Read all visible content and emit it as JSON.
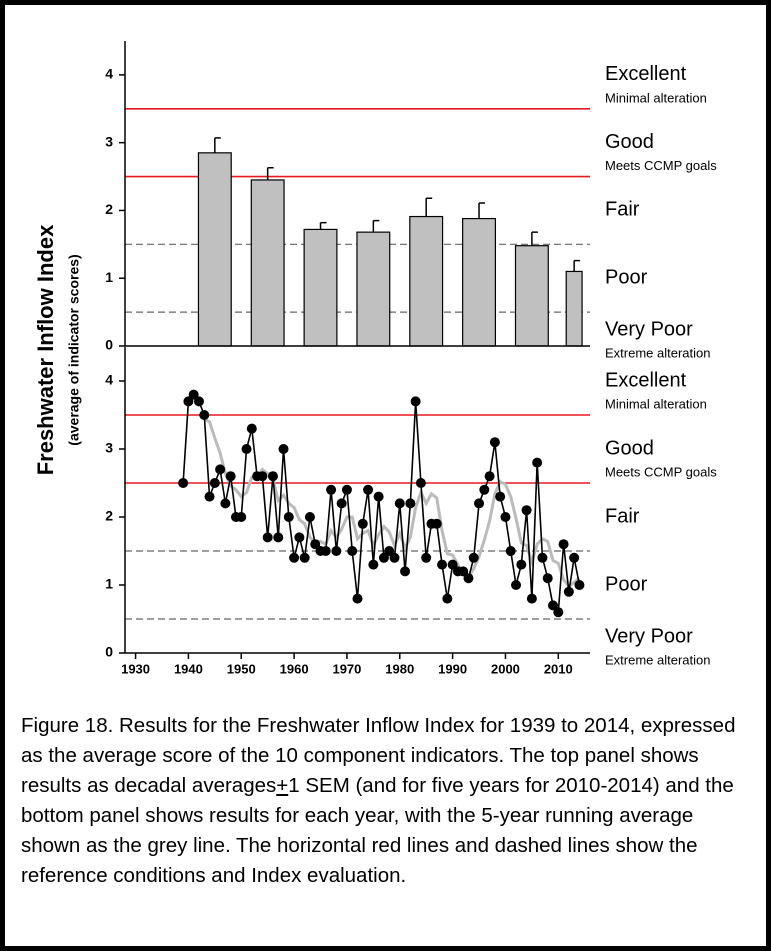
{
  "figure": {
    "ylabel": "Freshwater Inflow Index",
    "ylabel_note": "(average of indicator scores)",
    "caption": [
      "Figure 18. Results for the Freshwater Inflow Index for 1939 to 2014, expressed as the average score of the 10 component indicators. The top panel shows results as decadal averages",
      "+",
      "1 SEM (and for five years for 2010-2014) and the bottom panel shows results for each year, with the 5-year running average shown as the grey line. The horizontal red lines and dashed lines show the reference conditions and Index evaluation."
    ]
  },
  "chart_data": [
    {
      "type": "bar",
      "x": [
        1945,
        1955,
        1965,
        1975,
        1985,
        1995,
        2005,
        2013
      ],
      "values": [
        2.85,
        2.45,
        1.72,
        1.68,
        1.91,
        1.88,
        1.48,
        1.1
      ],
      "errors": [
        0.22,
        0.18,
        0.1,
        0.17,
        0.27,
        0.23,
        0.2,
        0.16
      ],
      "color": "#c0c0c0",
      "xlim": [
        1928,
        2016
      ],
      "ylim": [
        0,
        4.5
      ],
      "yticks": [
        0,
        1,
        2,
        3,
        4
      ],
      "reference_lines": [
        {
          "value": 3.5,
          "color": "#e8191f",
          "style": "solid"
        },
        {
          "value": 2.5,
          "color": "#e8191f",
          "style": "solid"
        },
        {
          "value": 1.5,
          "color": "#666666",
          "style": "dashed"
        },
        {
          "value": 0.5,
          "color": "#666666",
          "style": "dashed"
        }
      ],
      "ratings": [
        {
          "label": "Excellent",
          "note": "Minimal alteration"
        },
        {
          "label": "Good",
          "note": "Meets CCMP goals"
        },
        {
          "label": "Fair"
        },
        {
          "label": "Poor"
        },
        {
          "label": "Very Poor",
          "note": "Extreme alteration"
        }
      ]
    },
    {
      "type": "line",
      "x": [
        1939,
        1940,
        1941,
        1942,
        1943,
        1944,
        1945,
        1946,
        1947,
        1948,
        1949,
        1950,
        1951,
        1952,
        1953,
        1954,
        1955,
        1956,
        1957,
        1958,
        1959,
        1960,
        1961,
        1962,
        1963,
        1964,
        1965,
        1966,
        1967,
        1968,
        1969,
        1970,
        1971,
        1972,
        1973,
        1974,
        1975,
        1976,
        1977,
        1978,
        1979,
        1980,
        1981,
        1982,
        1983,
        1984,
        1985,
        1986,
        1987,
        1988,
        1989,
        1990,
        1991,
        1992,
        1993,
        1994,
        1995,
        1996,
        1997,
        1998,
        1999,
        2000,
        2001,
        2002,
        2003,
        2004,
        2005,
        2006,
        2007,
        2008,
        2009,
        2010,
        2011,
        2012,
        2013,
        2014
      ],
      "series": [
        {
          "color": "#bbbbbb",
          "markers": false,
          "values": [
            null,
            null,
            null,
            null,
            3.44,
            3.4,
            3.16,
            2.94,
            2.64,
            2.46,
            2.4,
            2.3,
            2.36,
            2.58,
            2.58,
            2.7,
            2.64,
            2.56,
            2.24,
            2.32,
            2.2,
            2.14,
            1.96,
            1.9,
            1.7,
            1.62,
            1.64,
            1.6,
            1.8,
            1.7,
            1.82,
            2.0,
            2.0,
            1.68,
            1.76,
            1.8,
            1.58,
            1.74,
            1.86,
            1.78,
            1.58,
            1.76,
            1.54,
            1.7,
            2.14,
            2.36,
            2.2,
            2.34,
            2.28,
            1.8,
            1.46,
            1.44,
            1.3,
            1.16,
            1.12,
            1.24,
            1.42,
            1.66,
            1.94,
            2.34,
            2.52,
            2.48,
            2.3,
            1.98,
            1.62,
            1.58,
            1.34,
            1.6,
            1.68,
            1.64,
            1.36,
            1.32,
            1.08,
            0.98,
            1.04,
            1.1
          ]
        },
        {
          "color": "#000000",
          "markers": true,
          "values": [
            2.5,
            3.7,
            3.8,
            3.7,
            3.5,
            2.3,
            2.5,
            2.7,
            2.2,
            2.6,
            2.0,
            2.0,
            3.0,
            3.3,
            2.6,
            2.6,
            1.7,
            2.6,
            1.7,
            3.0,
            2.0,
            1.4,
            1.7,
            1.4,
            2.0,
            1.6,
            1.5,
            1.5,
            2.4,
            1.5,
            2.2,
            2.4,
            1.5,
            0.8,
            1.9,
            2.4,
            1.3,
            2.3,
            1.4,
            1.5,
            1.4,
            2.2,
            1.2,
            2.2,
            3.7,
            2.5,
            1.4,
            1.9,
            1.9,
            1.3,
            0.8,
            1.3,
            1.2,
            1.2,
            1.1,
            1.4,
            2.2,
            2.4,
            2.6,
            3.1,
            2.3,
            2.0,
            1.5,
            1.0,
            1.3,
            2.1,
            0.8,
            2.8,
            1.4,
            1.1,
            0.7,
            0.6,
            1.6,
            0.9,
            1.4,
            1.0
          ]
        }
      ],
      "xlim": [
        1928,
        2016
      ],
      "xticks": [
        1930,
        1940,
        1950,
        1960,
        1970,
        1980,
        1990,
        2000,
        2010
      ],
      "ylim": [
        0,
        4.5
      ],
      "yticks": [
        0,
        1,
        2,
        3,
        4
      ],
      "reference_lines": [
        {
          "value": 3.5,
          "color": "#e8191f",
          "style": "solid"
        },
        {
          "value": 2.5,
          "color": "#e8191f",
          "style": "solid"
        },
        {
          "value": 1.5,
          "color": "#666666",
          "style": "dashed"
        },
        {
          "value": 0.5,
          "color": "#666666",
          "style": "dashed"
        }
      ],
      "ratings": [
        {
          "label": "Excellent",
          "note": "Minimal alteration"
        },
        {
          "label": "Good",
          "note": "Meets CCMP goals"
        },
        {
          "label": "Fair"
        },
        {
          "label": "Poor"
        },
        {
          "label": "Very Poor",
          "note": "Extreme alteration"
        }
      ]
    }
  ]
}
